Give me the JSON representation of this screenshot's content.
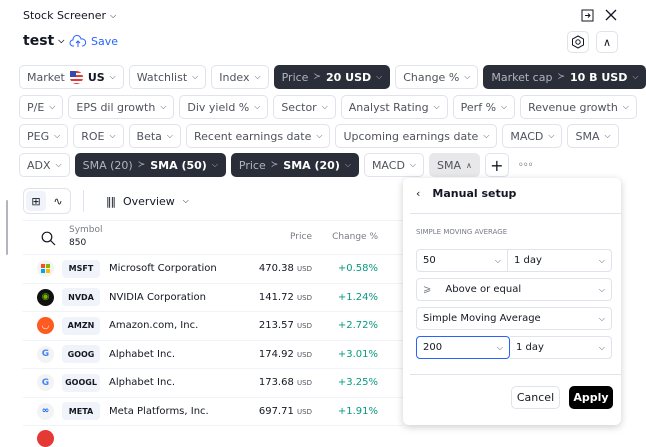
{
  "header": {
    "app_title": "Stock Screener",
    "screen_name": "test",
    "save_label": "Save"
  },
  "filters": {
    "row1": [
      {
        "label": "Market",
        "value": "US"
      },
      {
        "label": "Watchlist"
      },
      {
        "label": "Index"
      },
      {
        "label": "Price",
        "value": "20 USD",
        "active": true
      },
      {
        "label": "Change %"
      },
      {
        "label": "Market cap",
        "value": "10 B USD",
        "active": true
      }
    ],
    "row2": [
      {
        "label": "P/E"
      },
      {
        "label": "EPS dil growth"
      },
      {
        "label": "Div yield %"
      },
      {
        "label": "Sector"
      },
      {
        "label": "Analyst Rating"
      },
      {
        "label": "Perf %"
      },
      {
        "label": "Revenue growth"
      }
    ],
    "row3": [
      {
        "label": "PEG"
      },
      {
        "label": "ROE"
      },
      {
        "label": "Beta"
      },
      {
        "label": "Recent earnings date"
      },
      {
        "label": "Upcoming earnings date"
      },
      {
        "label": "MACD"
      },
      {
        "label": "SMA"
      }
    ],
    "row4": [
      {
        "label": "ADX"
      },
      {
        "label": "SMA (20)",
        "value": "SMA (50)",
        "active": true
      },
      {
        "label": "Price",
        "value": "SMA (20)",
        "active": true
      },
      {
        "label": "MACD"
      },
      {
        "label": "SMA",
        "open": true
      }
    ]
  },
  "toolbar": {
    "view": "Overview"
  },
  "table": {
    "columns": {
      "symbol": "Symbol",
      "count": "850",
      "price": "Price",
      "change": "Change %"
    },
    "currency": "USD",
    "rows": [
      {
        "ticker": "MSFT",
        "name": "Microsoft Corporation",
        "price": "470.38",
        "change": "+0.58%"
      },
      {
        "ticker": "NVDA",
        "name": "NVIDIA Corporation",
        "price": "141.72",
        "change": "+1.24%"
      },
      {
        "ticker": "AMZN",
        "name": "Amazon.com, Inc.",
        "price": "213.57",
        "change": "+2.72%"
      },
      {
        "ticker": "GOOG",
        "name": "Alphabet Inc.",
        "price": "174.92",
        "change": "+3.01%"
      },
      {
        "ticker": "GOOGL",
        "name": "Alphabet Inc.",
        "price": "173.68",
        "change": "+3.25%"
      },
      {
        "ticker": "META",
        "name": "Meta Platforms, Inc.",
        "price": "697.71",
        "change": "+1.91%"
      }
    ]
  },
  "panel": {
    "title": "Manual setup",
    "section": "SIMPLE MOVING AVERAGE",
    "period1": "50",
    "interval1": "1 day",
    "condition": "Above or equal",
    "indicator": "Simple Moving Average",
    "period2": "200",
    "interval2": "1 day",
    "cancel": "Cancel",
    "apply": "Apply"
  },
  "colors": {
    "accent": "#2962ff",
    "positive": "#089981",
    "dark_chip": "#2a2e39"
  }
}
